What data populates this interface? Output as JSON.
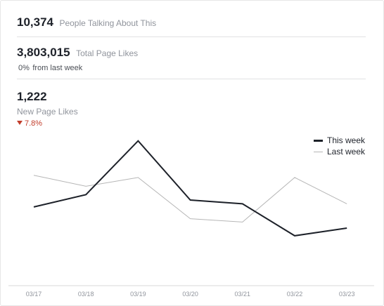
{
  "stats": {
    "talking": {
      "value": "10,374",
      "label": "People Talking About This"
    },
    "total_likes": {
      "value": "3,803,015",
      "label": "Total Page Likes",
      "change": "0%",
      "change_label": "from last week"
    },
    "new_likes": {
      "value": "1,222",
      "label": "New Page Likes",
      "change": "7.8%"
    }
  },
  "colors": {
    "this_week": "#1d2129",
    "last_week": "#b6b6b6",
    "negative": "#c23d2b"
  },
  "chart_data": {
    "type": "line",
    "categories": [
      "03/17",
      "03/18",
      "03/19",
      "03/20",
      "03/21",
      "03/22",
      "03/23"
    ],
    "series": [
      {
        "name": "This week",
        "values": [
          1080,
          1135,
          1374,
          1111,
          1094,
          952,
          986
        ]
      },
      {
        "name": "Last week",
        "values": [
          1221,
          1172,
          1211,
          1028,
          1013,
          1211,
          1094
        ]
      }
    ],
    "ylim": [
      730,
      1470
    ],
    "grid": false,
    "legend": "top-right"
  }
}
